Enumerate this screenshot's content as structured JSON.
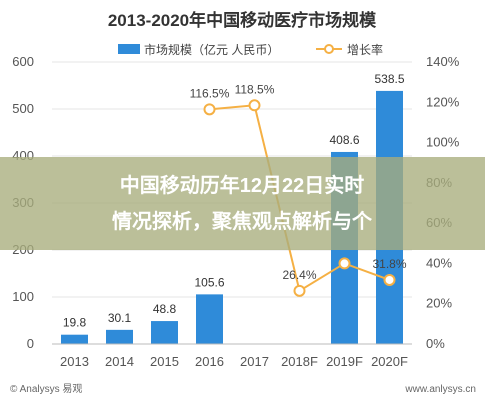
{
  "chart_data": {
    "type": "bar",
    "title": "2013-2020年中国移动医疗市场规模",
    "categories": [
      "2013",
      "2014",
      "2015",
      "2016",
      "2017",
      "2018F",
      "2019F",
      "2020F"
    ],
    "series": [
      {
        "name": "市场规模（亿元 人民币）",
        "type": "bar",
        "axis": "left",
        "values": [
          19.8,
          30.1,
          48.8,
          105.6,
          null,
          null,
          408.6,
          538.5
        ],
        "labels": [
          "19.8",
          "30.1",
          "48.8",
          "105.6",
          "",
          "",
          "408.6",
          "538.5"
        ],
        "color": "#2f8bd9"
      },
      {
        "name": "增长率",
        "type": "line",
        "axis": "right",
        "values": [
          null,
          null,
          null,
          116.5,
          118.5,
          26.4,
          40,
          31.8
        ],
        "labels": [
          "",
          "",
          "",
          "116.5%",
          "118.5%",
          "26.4%",
          "",
          "31.8%"
        ],
        "color": "#f5b044"
      }
    ],
    "ylim_left": [
      0,
      600
    ],
    "yticks_left": [
      0,
      100,
      200,
      300,
      400,
      500,
      600
    ],
    "ylim_right": [
      0,
      140
    ],
    "yticks_right": [
      "0%",
      "20%",
      "40%",
      "60%",
      "80%",
      "100%",
      "120%",
      "140%"
    ],
    "legend_position": "top-center"
  },
  "overlay": {
    "line1": "中国移动历年12月22日实时",
    "line2": "情况探析，聚焦观点解析与个"
  },
  "footer": {
    "left": "© Analysys 易观",
    "right": "www.anlysys.cn"
  }
}
